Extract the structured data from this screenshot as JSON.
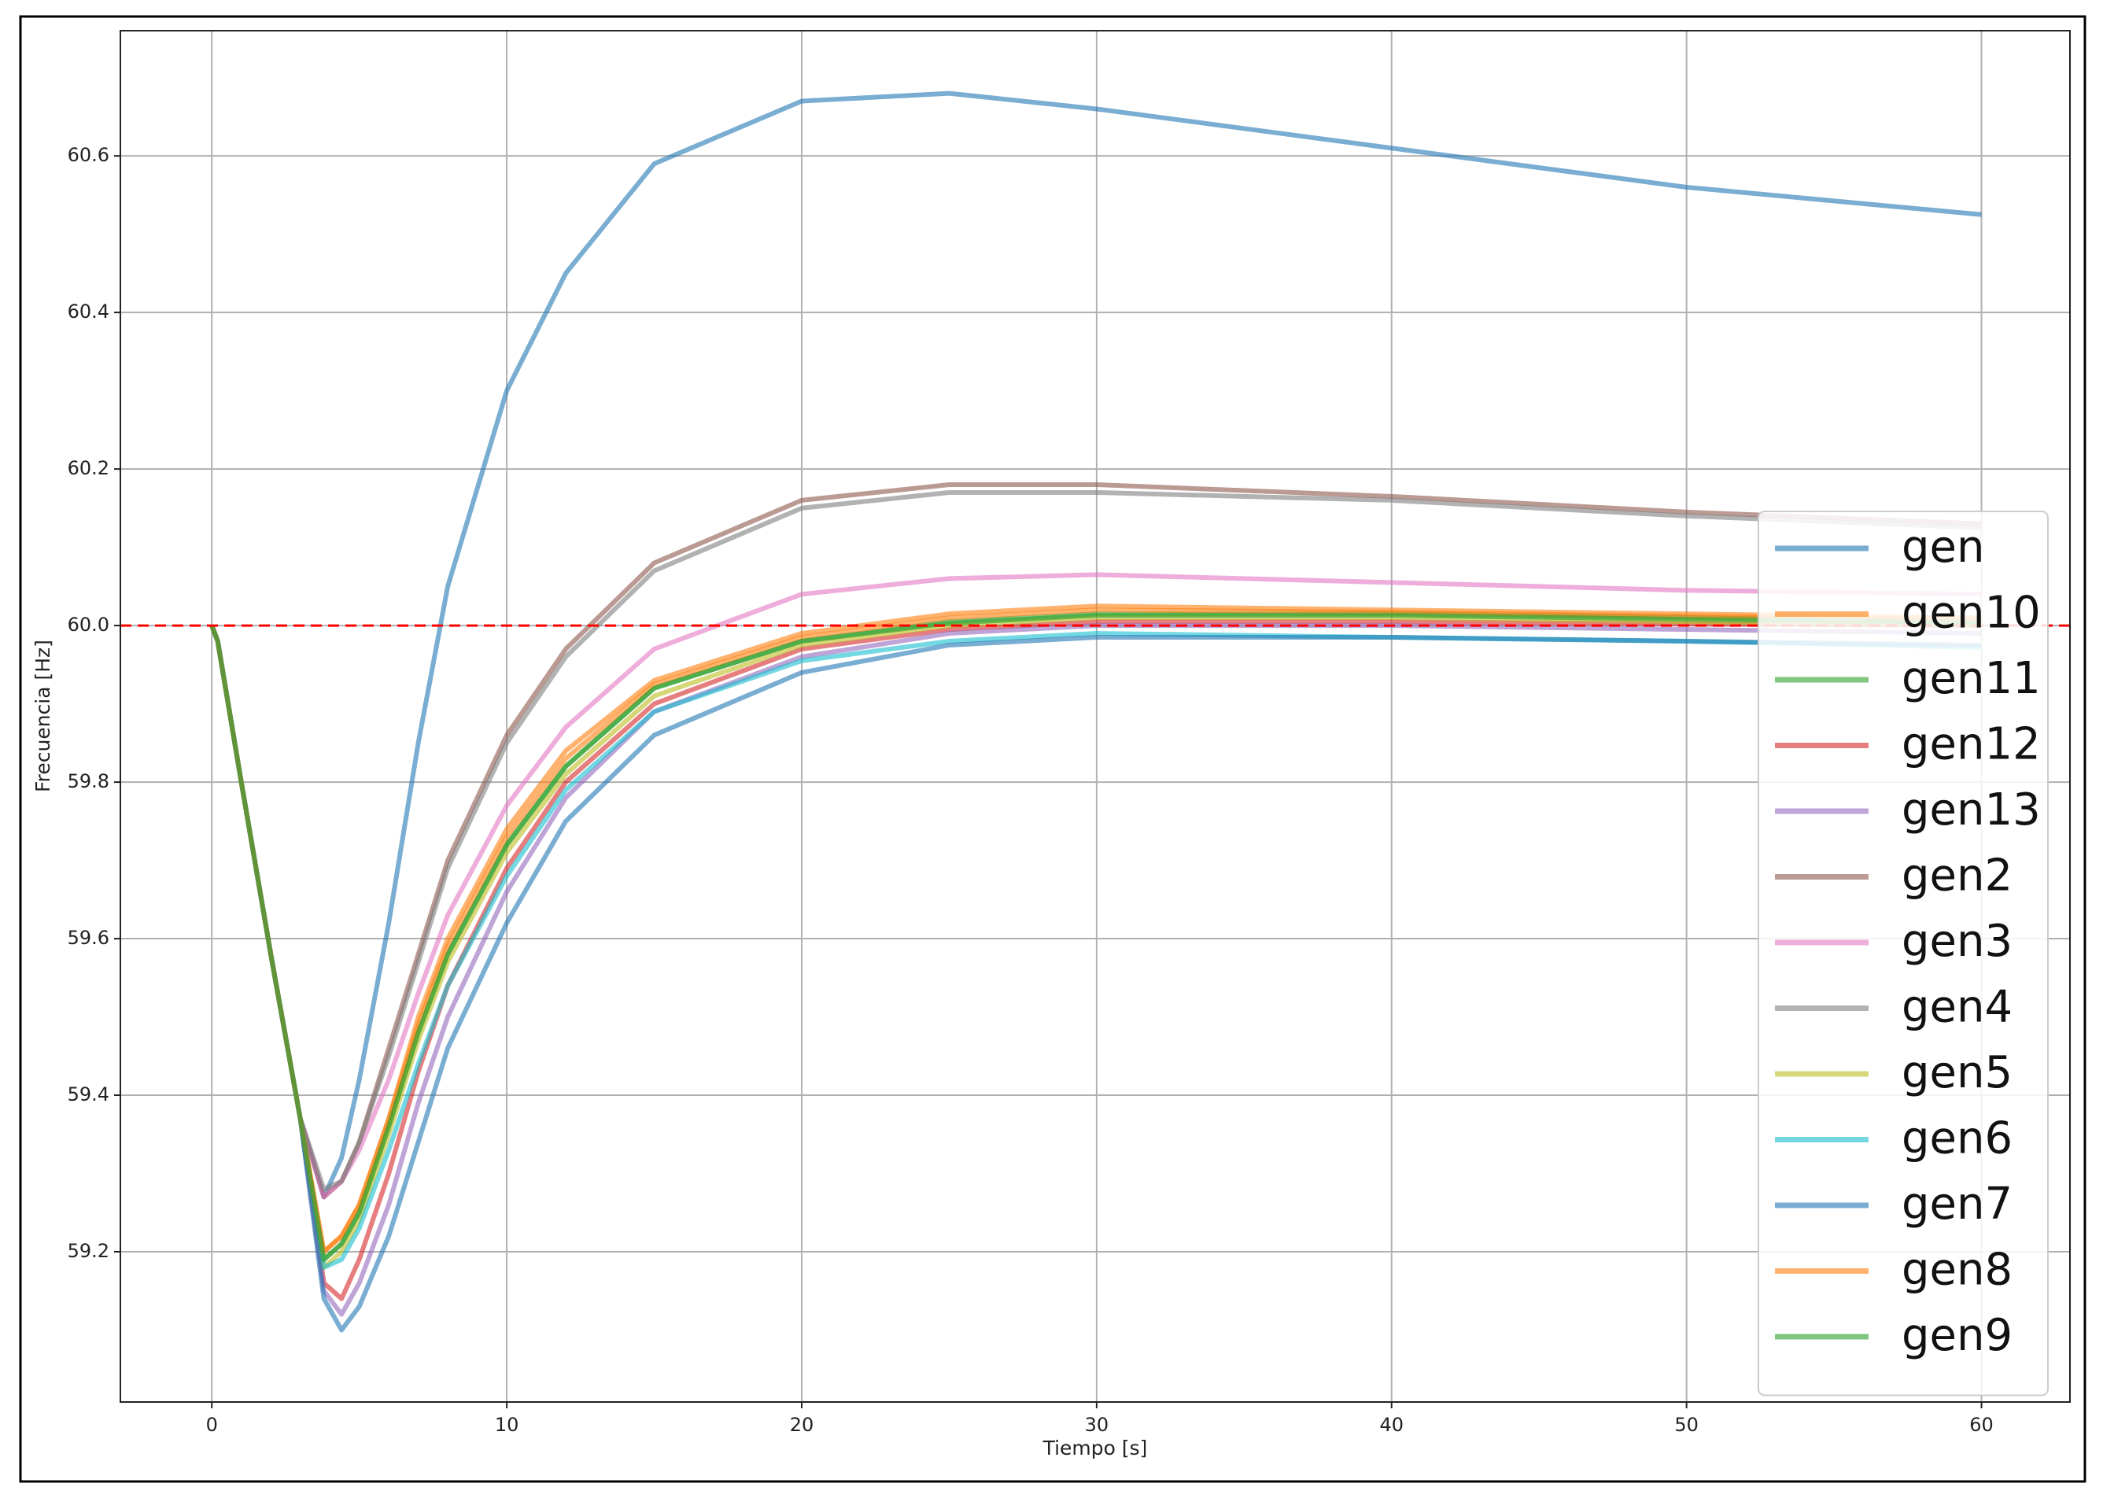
{
  "chart_data": {
    "type": "line",
    "xlabel": "Tiempo [s]",
    "ylabel": "Frecuencia [Hz]",
    "x": [
      0,
      0.2,
      1,
      2,
      3,
      3.8,
      4.4,
      5,
      6,
      7,
      8,
      10,
      12,
      15,
      20,
      25,
      30,
      40,
      50,
      60
    ],
    "xlim": [
      -3.1,
      63
    ],
    "xticks": [
      0,
      10,
      20,
      30,
      40,
      50,
      60
    ],
    "ylim": [
      59.008,
      60.76
    ],
    "yticks": [
      59.2,
      59.4,
      59.6,
      59.8,
      {
        "value": 60,
        "label": "60.0"
      },
      60.2,
      60.4,
      60.6
    ],
    "grid": true,
    "legend_loc": "right",
    "line_alpha": 0.6,
    "reference_line": {
      "value": 60,
      "color": "#ff0000",
      "style": "dashed"
    },
    "series": [
      {
        "name": "gen",
        "color": "#1f77b4",
        "values": [
          60,
          59.98,
          59.8,
          59.58,
          59.37,
          59.27,
          59.32,
          59.42,
          59.62,
          59.85,
          60.05,
          60.3,
          60.45,
          60.59,
          60.67,
          60.68,
          60.66,
          60.61,
          60.56,
          60.525
        ]
      },
      {
        "name": "gen10",
        "color": "#ff7f0e",
        "values": [
          60,
          59.98,
          59.8,
          59.58,
          59.37,
          59.2,
          59.22,
          59.26,
          59.37,
          59.5,
          59.6,
          59.74,
          59.84,
          59.93,
          59.99,
          60.015,
          60.025,
          60.02,
          60.015,
          60.01
        ]
      },
      {
        "name": "gen11",
        "color": "#2ca02c",
        "values": [
          60,
          59.98,
          59.8,
          59.58,
          59.37,
          59.19,
          59.21,
          59.25,
          59.36,
          59.48,
          59.58,
          59.72,
          59.82,
          59.92,
          59.98,
          60.005,
          60.015,
          60.015,
          60.01,
          60.005
        ]
      },
      {
        "name": "gen12",
        "color": "#d62728",
        "values": [
          60,
          59.98,
          59.8,
          59.58,
          59.37,
          59.16,
          59.14,
          59.19,
          59.3,
          59.43,
          59.54,
          59.69,
          59.8,
          59.9,
          59.97,
          59.995,
          60.005,
          60.005,
          60.002,
          60
        ]
      },
      {
        "name": "gen13",
        "color": "#9467bd",
        "values": [
          60,
          59.98,
          59.8,
          59.58,
          59.37,
          59.15,
          59.12,
          59.16,
          59.26,
          59.39,
          59.5,
          59.66,
          59.78,
          59.89,
          59.96,
          59.99,
          60,
          60,
          59.995,
          59.99
        ]
      },
      {
        "name": "gen2",
        "color": "#8c564b",
        "values": [
          60,
          59.98,
          59.8,
          59.58,
          59.37,
          59.27,
          59.29,
          59.34,
          59.46,
          59.58,
          59.7,
          59.86,
          59.97,
          60.08,
          60.16,
          60.18,
          60.18,
          60.165,
          60.145,
          60.13
        ]
      },
      {
        "name": "gen3",
        "color": "#e377c2",
        "values": [
          60,
          59.98,
          59.8,
          59.58,
          59.37,
          59.27,
          59.29,
          59.33,
          59.42,
          59.53,
          59.63,
          59.77,
          59.87,
          59.97,
          60.04,
          60.06,
          60.065,
          60.055,
          60.045,
          60.04
        ]
      },
      {
        "name": "gen4",
        "color": "#7f7f7f",
        "values": [
          60,
          59.98,
          59.8,
          59.58,
          59.37,
          59.28,
          59.29,
          59.34,
          59.45,
          59.57,
          59.69,
          59.85,
          59.96,
          60.07,
          60.15,
          60.17,
          60.17,
          60.16,
          60.14,
          60.125
        ]
      },
      {
        "name": "gen5",
        "color": "#bcbd22",
        "values": [
          60,
          59.98,
          59.8,
          59.58,
          59.37,
          59.18,
          59.2,
          59.24,
          59.35,
          59.47,
          59.57,
          59.71,
          59.81,
          59.91,
          59.975,
          60,
          60.01,
          60.01,
          60.005,
          60
        ]
      },
      {
        "name": "gen6",
        "color": "#17becf",
        "values": [
          60,
          59.98,
          59.8,
          59.58,
          59.37,
          59.18,
          59.19,
          59.23,
          59.33,
          59.44,
          59.54,
          59.68,
          59.79,
          59.89,
          59.955,
          59.98,
          59.99,
          59.985,
          59.98,
          59.972
        ]
      },
      {
        "name": "gen7",
        "color": "#1f77b4",
        "values": [
          60,
          59.98,
          59.8,
          59.58,
          59.37,
          59.14,
          59.1,
          59.13,
          59.22,
          59.34,
          59.46,
          59.62,
          59.75,
          59.86,
          59.94,
          59.975,
          59.985,
          59.985,
          59.98,
          59.975
        ]
      },
      {
        "name": "gen8",
        "color": "#ff7f0e",
        "values": [
          60,
          59.98,
          59.8,
          59.58,
          59.37,
          59.2,
          59.22,
          59.26,
          59.37,
          59.49,
          59.59,
          59.73,
          59.83,
          59.925,
          59.985,
          60.01,
          60.02,
          60.017,
          60.012,
          60.008
        ]
      },
      {
        "name": "gen9",
        "color": "#2ca02c",
        "values": [
          60,
          59.98,
          59.8,
          59.58,
          59.37,
          59.19,
          59.21,
          59.25,
          59.36,
          59.48,
          59.58,
          59.72,
          59.82,
          59.92,
          59.98,
          60.003,
          60.013,
          60.013,
          60.008,
          60.003
        ]
      }
    ]
  }
}
